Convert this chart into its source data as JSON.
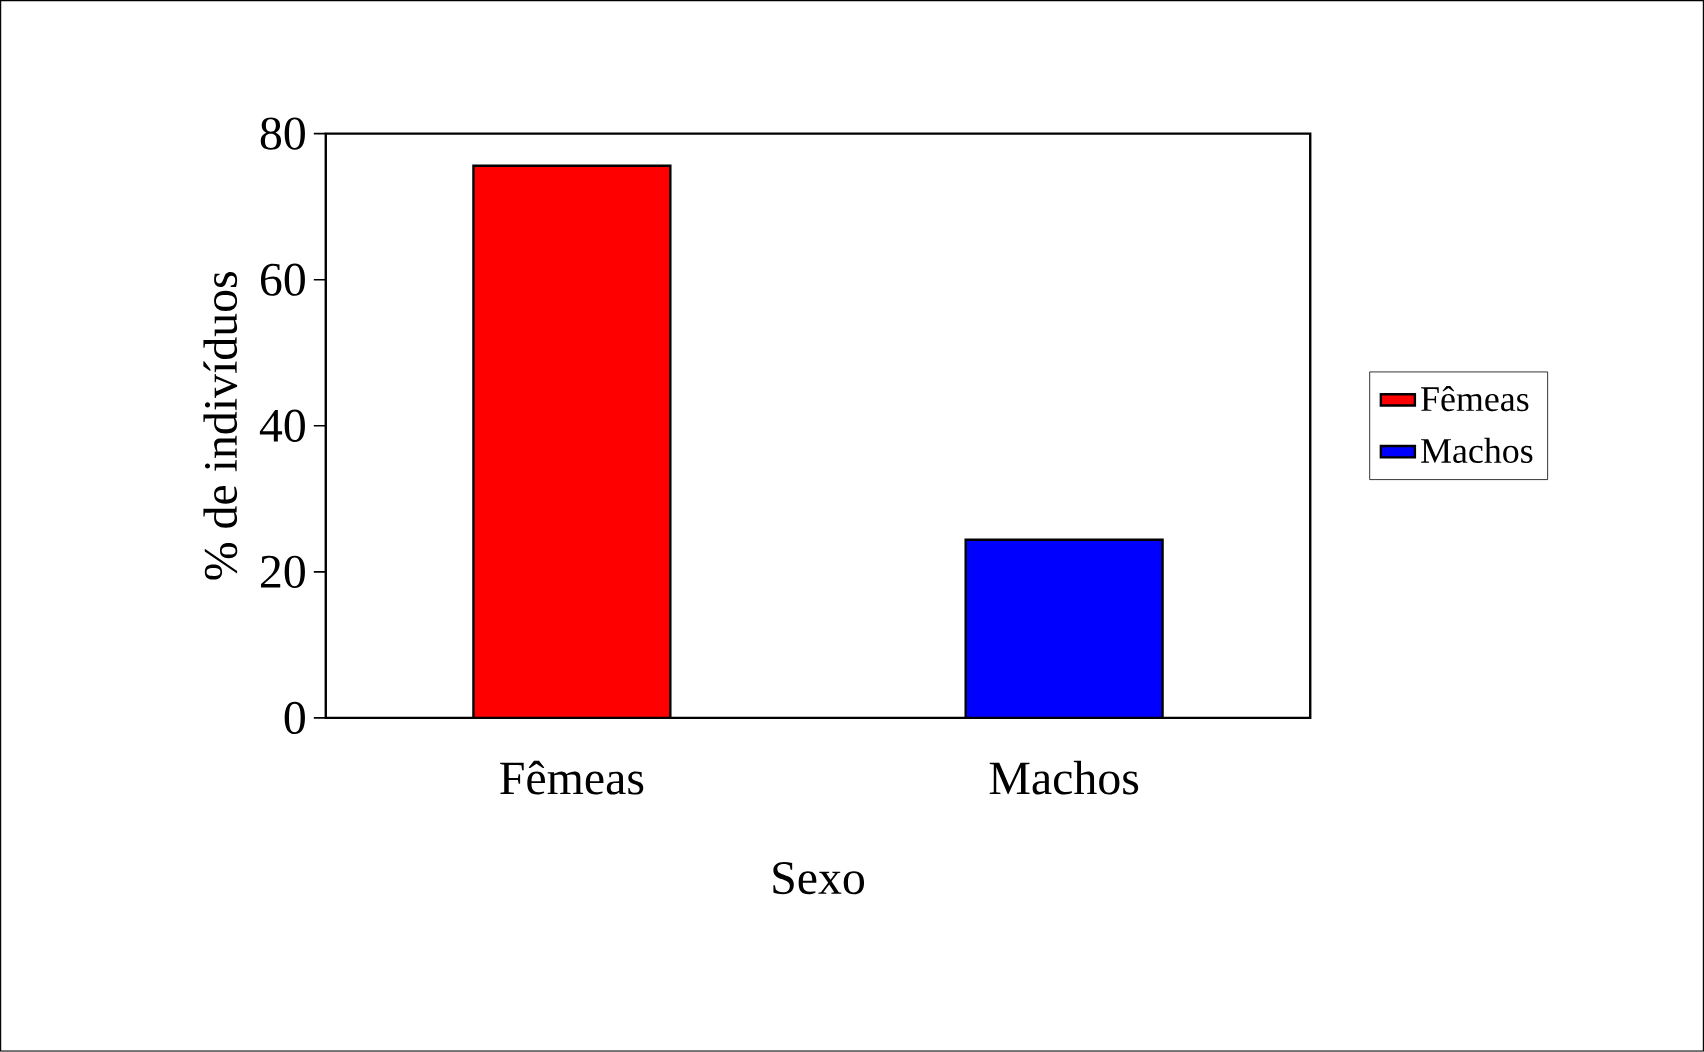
{
  "chart_data": {
    "type": "bar",
    "categories": [
      "Fêmeas",
      "Machos"
    ],
    "series": [
      {
        "name": "Fêmeas",
        "color": "#ff0000",
        "values": [
          75.6,
          null
        ]
      },
      {
        "name": "Machos",
        "color": "#0000ff",
        "values": [
          null,
          24.4
        ]
      }
    ],
    "xlabel": "Sexo",
    "ylabel": "% de indivíduos",
    "ylim": [
      0,
      80
    ],
    "yticks": [
      0,
      20,
      40,
      60,
      80
    ],
    "legend": "right",
    "grid": false
  }
}
